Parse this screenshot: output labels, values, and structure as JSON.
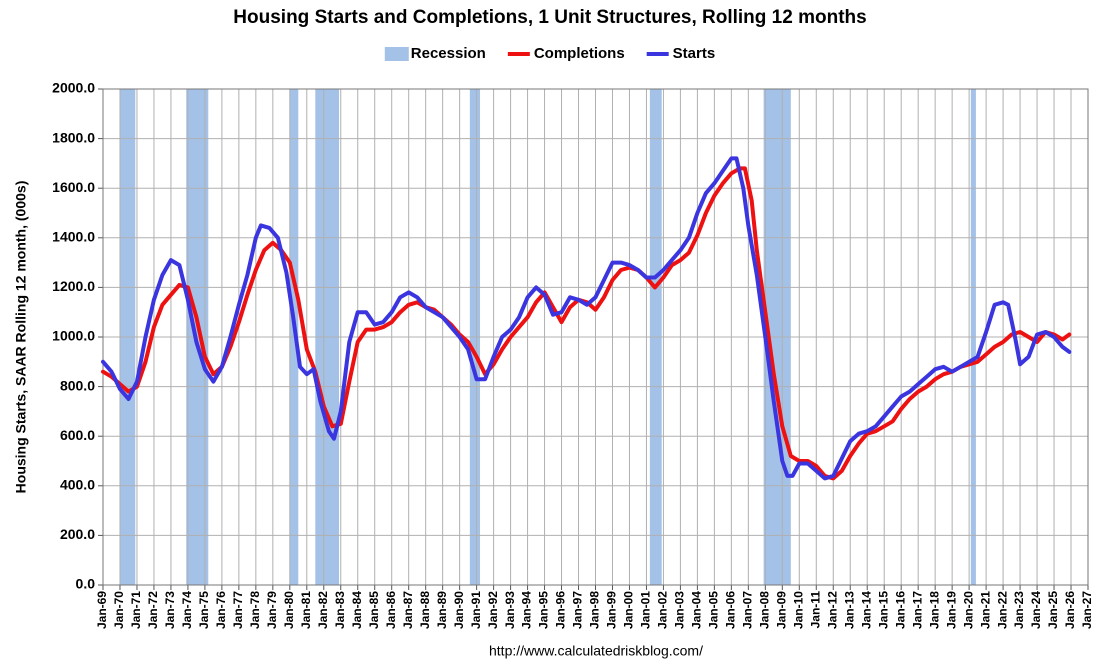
{
  "chart_data": {
    "type": "line",
    "title": "Housing Starts and Completions, 1 Unit Structures, Rolling 12 months",
    "ylabel": "Housing Starts, SAAR Rolling 12 month, (000s)",
    "source": "http://www.calculatedriskblog.com/",
    "xlim": [
      1969,
      2027
    ],
    "ylim": [
      0,
      2000
    ],
    "grid": true,
    "legend": "top",
    "yticks": [
      {
        "value": 0,
        "label": "0.0"
      },
      {
        "value": 200,
        "label": "200.0"
      },
      {
        "value": 400,
        "label": "400.0"
      },
      {
        "value": 600,
        "label": "600.0"
      },
      {
        "value": 800,
        "label": "800.0"
      },
      {
        "value": 1000,
        "label": "1000.0"
      },
      {
        "value": 1200,
        "label": "1200.0"
      },
      {
        "value": 1400,
        "label": "1400.0"
      },
      {
        "value": 1600,
        "label": "1600.0"
      },
      {
        "value": 1800,
        "label": "1800.0"
      },
      {
        "value": 2000,
        "label": "2000.0"
      }
    ],
    "xticks": [
      {
        "value": 1969,
        "label": "Jan-69"
      },
      {
        "value": 1970,
        "label": "Jan-70"
      },
      {
        "value": 1971,
        "label": "Jan-71"
      },
      {
        "value": 1972,
        "label": "Jan-72"
      },
      {
        "value": 1973,
        "label": "Jan-73"
      },
      {
        "value": 1974,
        "label": "Jan-74"
      },
      {
        "value": 1975,
        "label": "Jan-75"
      },
      {
        "value": 1976,
        "label": "Jan-76"
      },
      {
        "value": 1977,
        "label": "Jan-77"
      },
      {
        "value": 1978,
        "label": "Jan-78"
      },
      {
        "value": 1979,
        "label": "Jan-79"
      },
      {
        "value": 1980,
        "label": "Jan-80"
      },
      {
        "value": 1981,
        "label": "Jan-81"
      },
      {
        "value": 1982,
        "label": "Jan-82"
      },
      {
        "value": 1983,
        "label": "Jan-83"
      },
      {
        "value": 1984,
        "label": "Jan-84"
      },
      {
        "value": 1985,
        "label": "Jan-85"
      },
      {
        "value": 1986,
        "label": "Jan-86"
      },
      {
        "value": 1987,
        "label": "Jan-87"
      },
      {
        "value": 1988,
        "label": "Jan-88"
      },
      {
        "value": 1989,
        "label": "Jan-89"
      },
      {
        "value": 1990,
        "label": "Jan-90"
      },
      {
        "value": 1991,
        "label": "Jan-91"
      },
      {
        "value": 1992,
        "label": "Jan-92"
      },
      {
        "value": 1993,
        "label": "Jan-93"
      },
      {
        "value": 1994,
        "label": "Jan-94"
      },
      {
        "value": 1995,
        "label": "Jan-95"
      },
      {
        "value": 1996,
        "label": "Jan-96"
      },
      {
        "value": 1997,
        "label": "Jan-97"
      },
      {
        "value": 1998,
        "label": "Jan-98"
      },
      {
        "value": 1999,
        "label": "Jan-99"
      },
      {
        "value": 2000,
        "label": "Jan-00"
      },
      {
        "value": 2001,
        "label": "Jan-01"
      },
      {
        "value": 2002,
        "label": "Jan-02"
      },
      {
        "value": 2003,
        "label": "Jan-03"
      },
      {
        "value": 2004,
        "label": "Jan-04"
      },
      {
        "value": 2005,
        "label": "Jan-05"
      },
      {
        "value": 2006,
        "label": "Jan-06"
      },
      {
        "value": 2007,
        "label": "Jan-07"
      },
      {
        "value": 2008,
        "label": "Jan-08"
      },
      {
        "value": 2009,
        "label": "Jan-09"
      },
      {
        "value": 2010,
        "label": "Jan-10"
      },
      {
        "value": 2011,
        "label": "Jan-11"
      },
      {
        "value": 2012,
        "label": "Jan-12"
      },
      {
        "value": 2013,
        "label": "Jan-13"
      },
      {
        "value": 2014,
        "label": "Jan-14"
      },
      {
        "value": 2015,
        "label": "Jan-15"
      },
      {
        "value": 2016,
        "label": "Jan-16"
      },
      {
        "value": 2017,
        "label": "Jan-17"
      },
      {
        "value": 2018,
        "label": "Jan-18"
      },
      {
        "value": 2019,
        "label": "Jan-19"
      },
      {
        "value": 2020,
        "label": "Jan-20"
      },
      {
        "value": 2021,
        "label": "Jan-21"
      },
      {
        "value": 2022,
        "label": "Jan-22"
      },
      {
        "value": 2023,
        "label": "Jan-23"
      },
      {
        "value": 2024,
        "label": "Jan-24"
      },
      {
        "value": 2025,
        "label": "Jan-25"
      },
      {
        "value": 2026,
        "label": "Jan-26"
      },
      {
        "value": 2027,
        "label": "Jan-27"
      }
    ],
    "recession": {
      "name": "Recession",
      "color": "#a4c2e8",
      "ranges": [
        [
          1970.0,
          1970.9
        ],
        [
          1973.9,
          1975.2
        ],
        [
          1980.0,
          1980.5
        ],
        [
          1981.5,
          1982.9
        ],
        [
          1990.6,
          1991.2
        ],
        [
          2001.2,
          2001.9
        ],
        [
          2007.9,
          2009.5
        ],
        [
          2020.1,
          2020.4
        ]
      ]
    },
    "series": [
      {
        "name": "Completions",
        "color": "#ee1111",
        "x": [
          1969.0,
          1969.5,
          1970.0,
          1970.5,
          1971.0,
          1971.5,
          1972.0,
          1972.5,
          1973.0,
          1973.5,
          1974.0,
          1974.5,
          1975.0,
          1975.5,
          1976.0,
          1976.5,
          1977.0,
          1977.5,
          1978.0,
          1978.5,
          1979.0,
          1979.5,
          1980.0,
          1980.5,
          1981.0,
          1981.5,
          1982.0,
          1982.5,
          1983.0,
          1983.5,
          1984.0,
          1984.5,
          1985.0,
          1985.5,
          1986.0,
          1986.5,
          1987.0,
          1987.5,
          1988.0,
          1988.5,
          1989.0,
          1989.5,
          1990.0,
          1990.5,
          1991.0,
          1991.5,
          1992.0,
          1992.5,
          1993.0,
          1993.5,
          1994.0,
          1994.5,
          1995.0,
          1995.5,
          1996.0,
          1996.5,
          1997.0,
          1997.5,
          1998.0,
          1998.5,
          1999.0,
          1999.5,
          2000.0,
          2000.5,
          2001.0,
          2001.5,
          2002.0,
          2002.5,
          2003.0,
          2003.5,
          2004.0,
          2004.5,
          2005.0,
          2005.5,
          2006.0,
          2006.5,
          2006.8,
          2007.2,
          2007.5,
          2008.0,
          2008.5,
          2009.0,
          2009.5,
          2010.0,
          2010.5,
          2011.0,
          2011.5,
          2012.0,
          2012.5,
          2013.0,
          2013.5,
          2014.0,
          2014.5,
          2015.0,
          2015.5,
          2016.0,
          2016.5,
          2017.0,
          2017.5,
          2018.0,
          2018.5,
          2019.0,
          2019.5,
          2020.0,
          2020.5,
          2021.0,
          2021.5,
          2022.0,
          2022.5,
          2023.0,
          2023.5,
          2024.0,
          2024.5,
          2025.0,
          2025.5,
          2025.9
        ],
        "values": [
          860,
          840,
          810,
          780,
          800,
          900,
          1040,
          1130,
          1170,
          1210,
          1200,
          1080,
          920,
          850,
          880,
          960,
          1060,
          1170,
          1270,
          1350,
          1380,
          1350,
          1300,
          1150,
          950,
          860,
          720,
          640,
          650,
          820,
          980,
          1030,
          1030,
          1040,
          1060,
          1100,
          1130,
          1140,
          1120,
          1110,
          1080,
          1050,
          1010,
          980,
          920,
          850,
          890,
          950,
          1000,
          1040,
          1080,
          1140,
          1180,
          1120,
          1060,
          1120,
          1150,
          1140,
          1110,
          1160,
          1230,
          1270,
          1280,
          1270,
          1240,
          1200,
          1240,
          1290,
          1310,
          1340,
          1410,
          1500,
          1570,
          1620,
          1660,
          1680,
          1680,
          1550,
          1350,
          1100,
          850,
          640,
          520,
          500,
          500,
          480,
          440,
          430,
          460,
          520,
          570,
          610,
          620,
          640,
          660,
          710,
          750,
          780,
          800,
          830,
          850,
          860,
          880,
          890,
          900,
          930,
          960,
          980,
          1010,
          1020,
          1000,
          980,
          1020,
          1010,
          990,
          1010
        ]
      },
      {
        "name": "Starts",
        "color": "#3b35e0",
        "x": [
          1969.0,
          1969.5,
          1970.0,
          1970.5,
          1971.0,
          1971.5,
          1972.0,
          1972.5,
          1973.0,
          1973.5,
          1974.0,
          1974.5,
          1975.0,
          1975.5,
          1976.0,
          1976.5,
          1977.0,
          1977.5,
          1978.0,
          1978.3,
          1978.8,
          1979.3,
          1979.8,
          1980.2,
          1980.6,
          1981.0,
          1981.4,
          1981.8,
          1982.3,
          1982.6,
          1983.0,
          1983.5,
          1984.0,
          1984.5,
          1985.0,
          1985.5,
          1986.0,
          1986.5,
          1987.0,
          1987.5,
          1988.0,
          1988.5,
          1989.0,
          1989.5,
          1990.0,
          1990.5,
          1991.0,
          1991.5,
          1992.0,
          1992.5,
          1993.0,
          1993.5,
          1994.0,
          1994.5,
          1995.0,
          1995.5,
          1996.0,
          1996.5,
          1997.0,
          1997.5,
          1998.0,
          1998.5,
          1999.0,
          1999.5,
          2000.0,
          2000.5,
          2001.0,
          2001.5,
          2002.0,
          2002.5,
          2003.0,
          2003.5,
          2004.0,
          2004.5,
          2005.0,
          2005.5,
          2006.0,
          2006.3,
          2006.7,
          2007.0,
          2007.5,
          2008.0,
          2008.5,
          2009.0,
          2009.3,
          2009.6,
          2010.0,
          2010.5,
          2011.0,
          2011.5,
          2012.0,
          2012.5,
          2013.0,
          2013.5,
          2014.0,
          2014.5,
          2015.0,
          2015.5,
          2016.0,
          2016.5,
          2017.0,
          2017.5,
          2018.0,
          2018.5,
          2019.0,
          2019.5,
          2020.0,
          2020.5,
          2021.0,
          2021.5,
          2022.0,
          2022.3,
          2022.7,
          2023.0,
          2023.5,
          2024.0,
          2024.5,
          2025.0,
          2025.5,
          2025.9
        ],
        "values": [
          900,
          860,
          790,
          750,
          820,
          1000,
          1150,
          1250,
          1310,
          1290,
          1150,
          980,
          870,
          820,
          880,
          1000,
          1130,
          1250,
          1400,
          1450,
          1440,
          1400,
          1260,
          1080,
          880,
          850,
          870,
          740,
          620,
          590,
          700,
          980,
          1100,
          1100,
          1050,
          1060,
          1100,
          1160,
          1180,
          1160,
          1120,
          1100,
          1080,
          1040,
          1000,
          950,
          830,
          830,
          920,
          1000,
          1030,
          1080,
          1160,
          1200,
          1170,
          1090,
          1100,
          1160,
          1150,
          1130,
          1160,
          1230,
          1300,
          1300,
          1290,
          1270,
          1240,
          1240,
          1270,
          1310,
          1350,
          1400,
          1500,
          1580,
          1620,
          1670,
          1720,
          1720,
          1600,
          1450,
          1250,
          1000,
          740,
          500,
          440,
          440,
          490,
          490,
          460,
          430,
          440,
          510,
          580,
          610,
          620,
          640,
          680,
          720,
          760,
          780,
          810,
          840,
          870,
          880,
          860,
          880,
          900,
          920,
          1020,
          1130,
          1140,
          1130,
          1000,
          890,
          920,
          1010,
          1020,
          1000,
          960,
          940
        ]
      }
    ]
  }
}
